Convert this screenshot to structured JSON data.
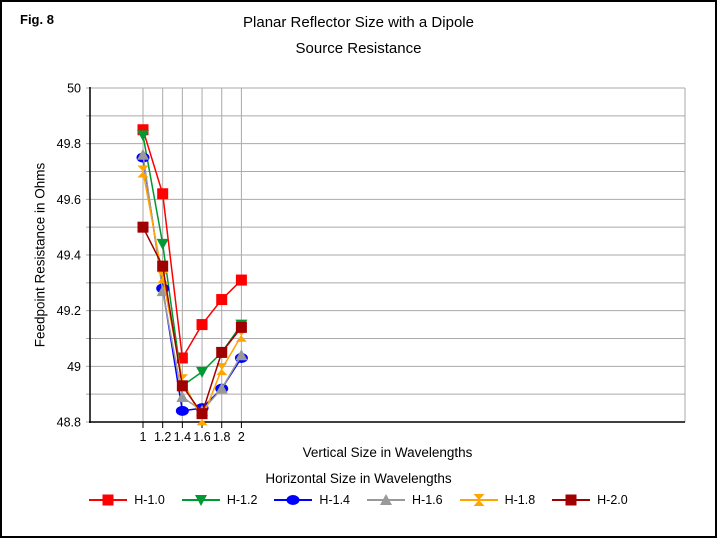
{
  "figure": {
    "label": "Fig. 8"
  },
  "title": {
    "line1": "Planar Reflector Size with a Dipole",
    "line2": "Source Resistance"
  },
  "colors": {
    "background": "#FFFFFF",
    "border": "#000000",
    "grid": "#AAAAAA",
    "axis": "#000000"
  },
  "chart_data": {
    "type": "line",
    "title": "Planar Reflector Size with a Dipole Source Resistance",
    "xlabel": "Vertical Size in Wavelengths",
    "ylabel": "Feedpoint Resistance in Ohms",
    "legend_title": "Horizontal Size in Wavelengths",
    "legend_position": "bottom",
    "grid": true,
    "ylim": [
      48.8,
      50
    ],
    "y_minor_step": 0.1,
    "x_ticks": [
      1,
      1.2,
      1.4,
      1.6,
      1.8,
      2
    ],
    "x_tick_labels": [
      "1",
      "1.2",
      "1.4",
      "1.6",
      "1.8",
      "2"
    ],
    "y_major_ticks": [
      50,
      49.8,
      49.6,
      49.4,
      49.2,
      49,
      48.8
    ],
    "y_tick_labels": [
      "50",
      "49.8",
      "49.6",
      "49.4",
      "49.2",
      "49",
      "48.8"
    ],
    "x": [
      1,
      1.2,
      1.4,
      1.6,
      1.8,
      2
    ],
    "series": [
      {
        "name": "H-1.0",
        "color": "#FF0000",
        "marker": "square",
        "values": [
          49.85,
          49.62,
          49.03,
          49.15,
          49.24,
          49.31
        ]
      },
      {
        "name": "H-1.2",
        "color": "#009933",
        "marker": "triangle-down",
        "values": [
          49.83,
          49.44,
          48.93,
          48.98,
          49.05,
          49.15
        ]
      },
      {
        "name": "H-1.4",
        "color": "#0000FF",
        "marker": "circle",
        "values": [
          49.75,
          49.28,
          48.84,
          48.85,
          48.92,
          49.03
        ]
      },
      {
        "name": "H-1.6",
        "color": "#999999",
        "marker": "triangle-up",
        "values": [
          49.76,
          49.27,
          48.89,
          48.84,
          48.92,
          49.04
        ]
      },
      {
        "name": "H-1.8",
        "color": "#FFA500",
        "marker": "hourglass",
        "values": [
          49.7,
          49.32,
          48.95,
          48.81,
          48.99,
          49.11
        ]
      },
      {
        "name": "H-2.0",
        "color": "#A00000",
        "marker": "square",
        "values": [
          49.5,
          49.36,
          48.93,
          48.83,
          49.05,
          49.14
        ]
      }
    ]
  }
}
